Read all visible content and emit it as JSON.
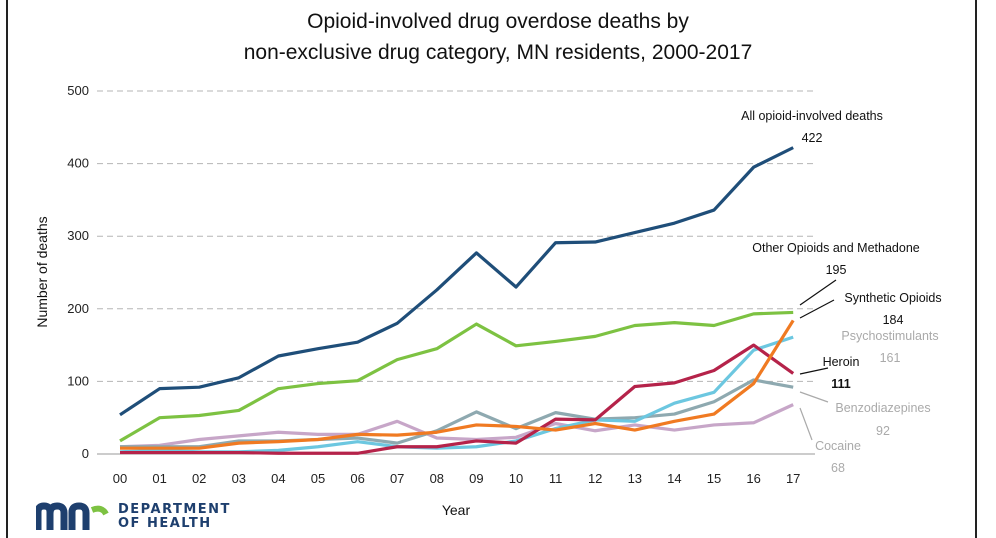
{
  "chart_data": {
    "type": "line",
    "title_line1": "Opioid-involved drug overdose deaths by",
    "title_line2": "non-exclusive drug category, MN residents, 2000-2017",
    "xlabel": "Year",
    "ylabel": "Number of deaths",
    "ylim": [
      0,
      500
    ],
    "yticks": [
      "0",
      "100",
      "200",
      "300",
      "400",
      "500"
    ],
    "grid": "horizontal dashed",
    "categories": [
      "00",
      "01",
      "02",
      "03",
      "04",
      "05",
      "06",
      "07",
      "08",
      "09",
      "10",
      "11",
      "12",
      "13",
      "14",
      "15",
      "16",
      "17"
    ],
    "series": [
      {
        "name": "All opioid-involved deaths",
        "color": "#1f4e79",
        "values": [
          54,
          90,
          92,
          105,
          135,
          145,
          154,
          180,
          226,
          277,
          230,
          291,
          292,
          305,
          318,
          336,
          395,
          422
        ],
        "label_name": "All opioid-involved deaths",
        "label_value": "422"
      },
      {
        "name": "Other Opioids and Methadone",
        "color": "#7dc242",
        "values": [
          18,
          50,
          53,
          60,
          90,
          97,
          101,
          130,
          145,
          179,
          149,
          155,
          162,
          177,
          181,
          177,
          193,
          195
        ],
        "label_name": "Other Opioids and Methadone",
        "label_value": "195"
      },
      {
        "name": "Synthetic Opioids",
        "color": "#f07a22",
        "values": [
          8,
          8,
          8,
          15,
          17,
          20,
          27,
          26,
          30,
          40,
          38,
          33,
          42,
          33,
          45,
          55,
          97,
          184
        ],
        "label_name": "Synthetic Opioids",
        "label_value": "184"
      },
      {
        "name": "Psychostimulants",
        "color": "#6cc7e0",
        "values": [
          3,
          5,
          3,
          3,
          5,
          10,
          17,
          10,
          8,
          10,
          18,
          35,
          47,
          45,
          70,
          85,
          143,
          161
        ],
        "label_name": "Psychostimulants",
        "label_value": "161"
      },
      {
        "name": "Heroin",
        "color": "#b5234a",
        "values": [
          2,
          2,
          2,
          2,
          1,
          1,
          1,
          10,
          10,
          18,
          15,
          48,
          47,
          93,
          98,
          115,
          150,
          111
        ],
        "label_name": "Heroin",
        "label_value": "111"
      },
      {
        "name": "Benzodiazepines",
        "color": "#8ea9b0",
        "values": [
          10,
          10,
          10,
          18,
          18,
          20,
          22,
          15,
          32,
          58,
          35,
          57,
          48,
          50,
          55,
          72,
          102,
          92
        ],
        "label_name": "Benzodiazepines",
        "label_value": "92"
      },
      {
        "name": "Cocaine",
        "color": "#c7a6c8",
        "values": [
          10,
          12,
          20,
          25,
          30,
          27,
          27,
          45,
          22,
          20,
          23,
          42,
          32,
          40,
          33,
          40,
          43,
          68
        ],
        "label_name": "Cocaine",
        "label_value": "68"
      }
    ]
  },
  "logo": {
    "line1": "DEPARTMENT",
    "line2": "OF HEALTH",
    "colors": {
      "blue": "#1e3f6e",
      "green": "#7dc242"
    }
  }
}
